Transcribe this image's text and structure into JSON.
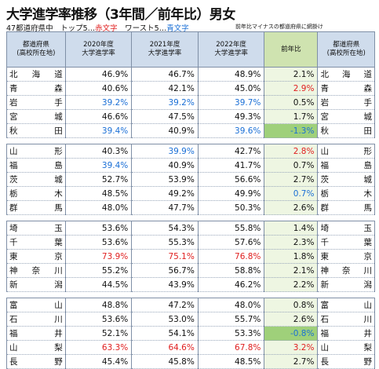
{
  "title": "大学進学率推移（3年間／前年比）男女",
  "subtitle": {
    "part1": "47都道府県中　トップ5…",
    "red_word": "赤文字",
    "part2": "　ワースト5…",
    "blue_word": "青文字"
  },
  "note": "前年比マイナスの都道府県に網掛け",
  "headers": {
    "pref": [
      "都道府県",
      "(高校所在地)"
    ],
    "y2020": [
      "2020年度",
      "大学進学率"
    ],
    "y2021": [
      "2021年度",
      "大学進学率"
    ],
    "y2022": [
      "2022年度",
      "大学進学率"
    ],
    "diff": "前年比",
    "pref2": [
      "都道府県",
      "(高校所在地)"
    ]
  },
  "colors": {
    "red": "#e02020",
    "blue": "#1a6fd6",
    "header_blue": "#cfdcec",
    "header_green": "#cfe3b0",
    "diff_bg": "#eef6e2",
    "neg_bg": "#9fd07a"
  },
  "groups": [
    [
      {
        "pref": "北海道",
        "v": [
          "46.9%",
          "46.7%",
          "48.9%"
        ],
        "c": [
          "",
          "",
          ""
        ],
        "d": "2.1%",
        "dc": "",
        "neg": false
      },
      {
        "pref": "青森",
        "v": [
          "40.6%",
          "42.1%",
          "45.0%"
        ],
        "c": [
          "",
          "",
          ""
        ],
        "d": "2.9%",
        "dc": "red",
        "neg": false
      },
      {
        "pref": "岩手",
        "v": [
          "39.2%",
          "39.2%",
          "39.7%"
        ],
        "c": [
          "blue",
          "blue",
          "blue"
        ],
        "d": "0.5%",
        "dc": "",
        "neg": false
      },
      {
        "pref": "宮城",
        "v": [
          "46.6%",
          "47.5%",
          "49.3%"
        ],
        "c": [
          "",
          "",
          ""
        ],
        "d": "1.7%",
        "dc": "",
        "neg": false
      },
      {
        "pref": "秋田",
        "v": [
          "39.4%",
          "40.9%",
          "39.6%"
        ],
        "c": [
          "blue",
          "",
          "blue"
        ],
        "d": "-1.3%",
        "dc": "blue",
        "neg": true
      }
    ],
    [
      {
        "pref": "山形",
        "v": [
          "40.3%",
          "39.9%",
          "42.7%"
        ],
        "c": [
          "",
          "blue",
          ""
        ],
        "d": "2.8%",
        "dc": "red",
        "neg": false
      },
      {
        "pref": "福島",
        "v": [
          "39.4%",
          "40.9%",
          "41.7%"
        ],
        "c": [
          "blue",
          "",
          ""
        ],
        "d": "0.7%",
        "dc": "",
        "neg": false
      },
      {
        "pref": "茨城",
        "v": [
          "52.7%",
          "53.9%",
          "56.6%"
        ],
        "c": [
          "",
          "",
          ""
        ],
        "d": "2.7%",
        "dc": "",
        "neg": false
      },
      {
        "pref": "栃木",
        "v": [
          "48.5%",
          "49.2%",
          "49.9%"
        ],
        "c": [
          "",
          "",
          ""
        ],
        "d": "0.7%",
        "dc": "blue",
        "neg": false
      },
      {
        "pref": "群馬",
        "v": [
          "48.0%",
          "47.7%",
          "50.3%"
        ],
        "c": [
          "",
          "",
          ""
        ],
        "d": "2.6%",
        "dc": "",
        "neg": false
      }
    ],
    [
      {
        "pref": "埼玉",
        "v": [
          "53.6%",
          "54.3%",
          "55.8%"
        ],
        "c": [
          "",
          "",
          ""
        ],
        "d": "1.4%",
        "dc": "",
        "neg": false
      },
      {
        "pref": "千葉",
        "v": [
          "53.6%",
          "55.3%",
          "57.6%"
        ],
        "c": [
          "",
          "",
          ""
        ],
        "d": "2.3%",
        "dc": "",
        "neg": false
      },
      {
        "pref": "東京",
        "v": [
          "73.9%",
          "75.1%",
          "76.8%"
        ],
        "c": [
          "red",
          "red",
          "red"
        ],
        "d": "1.8%",
        "dc": "",
        "neg": false
      },
      {
        "pref": "神奈川",
        "v": [
          "55.2%",
          "56.7%",
          "58.8%"
        ],
        "c": [
          "",
          "",
          ""
        ],
        "d": "2.1%",
        "dc": "",
        "neg": false
      },
      {
        "pref": "新潟",
        "v": [
          "44.5%",
          "43.9%",
          "46.2%"
        ],
        "c": [
          "",
          "",
          ""
        ],
        "d": "2.2%",
        "dc": "",
        "neg": false
      }
    ],
    [
      {
        "pref": "富山",
        "v": [
          "48.8%",
          "47.2%",
          "48.0%"
        ],
        "c": [
          "",
          "",
          ""
        ],
        "d": "0.8%",
        "dc": "",
        "neg": false
      },
      {
        "pref": "石川",
        "v": [
          "53.6%",
          "53.0%",
          "55.7%"
        ],
        "c": [
          "",
          "",
          ""
        ],
        "d": "2.6%",
        "dc": "",
        "neg": false
      },
      {
        "pref": "福井",
        "v": [
          "52.1%",
          "54.1%",
          "53.3%"
        ],
        "c": [
          "",
          "",
          ""
        ],
        "d": "-0.8%",
        "dc": "blue",
        "neg": true
      },
      {
        "pref": "山梨",
        "v": [
          "63.3%",
          "64.6%",
          "67.8%"
        ],
        "c": [
          "red",
          "red",
          "red"
        ],
        "d": "3.2%",
        "dc": "red",
        "neg": false
      },
      {
        "pref": "長野",
        "v": [
          "45.4%",
          "45.8%",
          "48.5%"
        ],
        "c": [
          "",
          "",
          ""
        ],
        "d": "2.7%",
        "dc": "",
        "neg": false
      }
    ]
  ]
}
